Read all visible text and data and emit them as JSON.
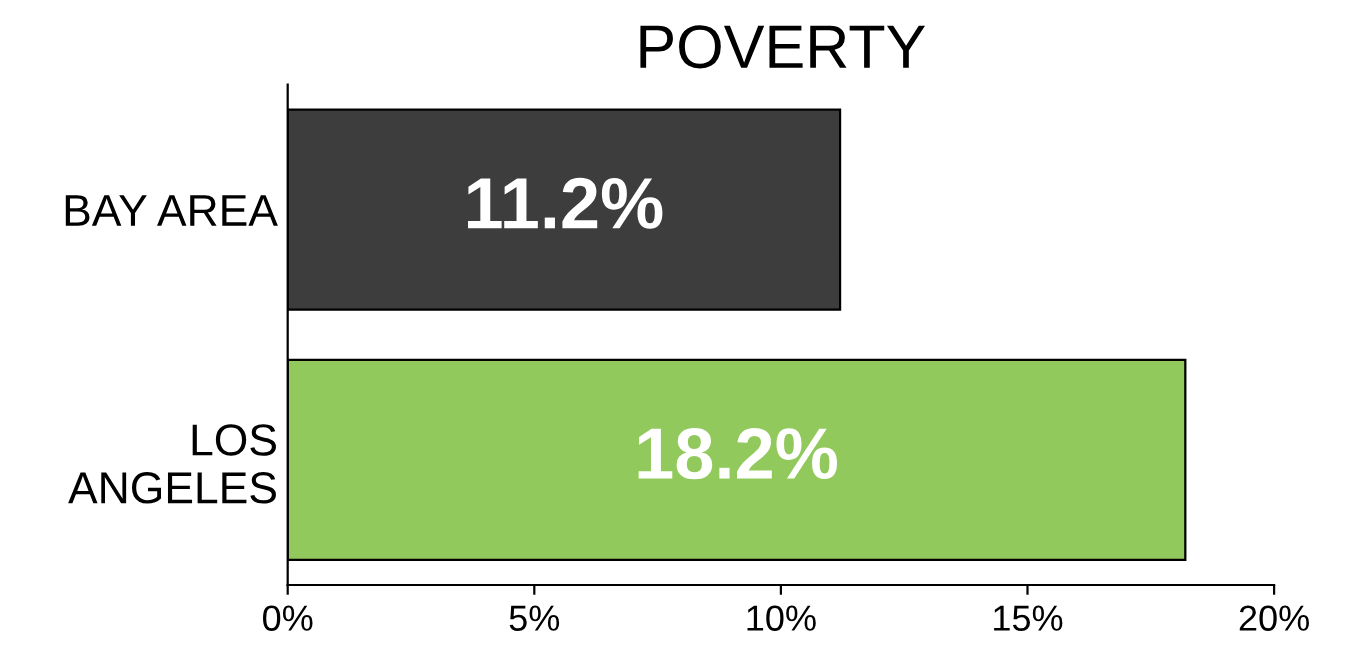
{
  "chart_data": {
    "type": "bar",
    "orientation": "horizontal",
    "title": "POVERTY",
    "categories": [
      "BAY AREA",
      "LOS\nANGELES"
    ],
    "values": [
      11.2,
      18.2
    ],
    "colors": [
      "#3d3d3d",
      "#92c95c"
    ],
    "value_labels": [
      "11.2%",
      "18.2%"
    ],
    "xlim": [
      0,
      20
    ],
    "xticks": [
      {
        "value": 0,
        "label": "0%"
      },
      {
        "value": 5,
        "label": "5%"
      },
      {
        "value": 10,
        "label": "10%"
      },
      {
        "value": 15,
        "label": "15%"
      },
      {
        "value": 20,
        "label": "20%"
      }
    ],
    "grid": false,
    "legend": false
  }
}
